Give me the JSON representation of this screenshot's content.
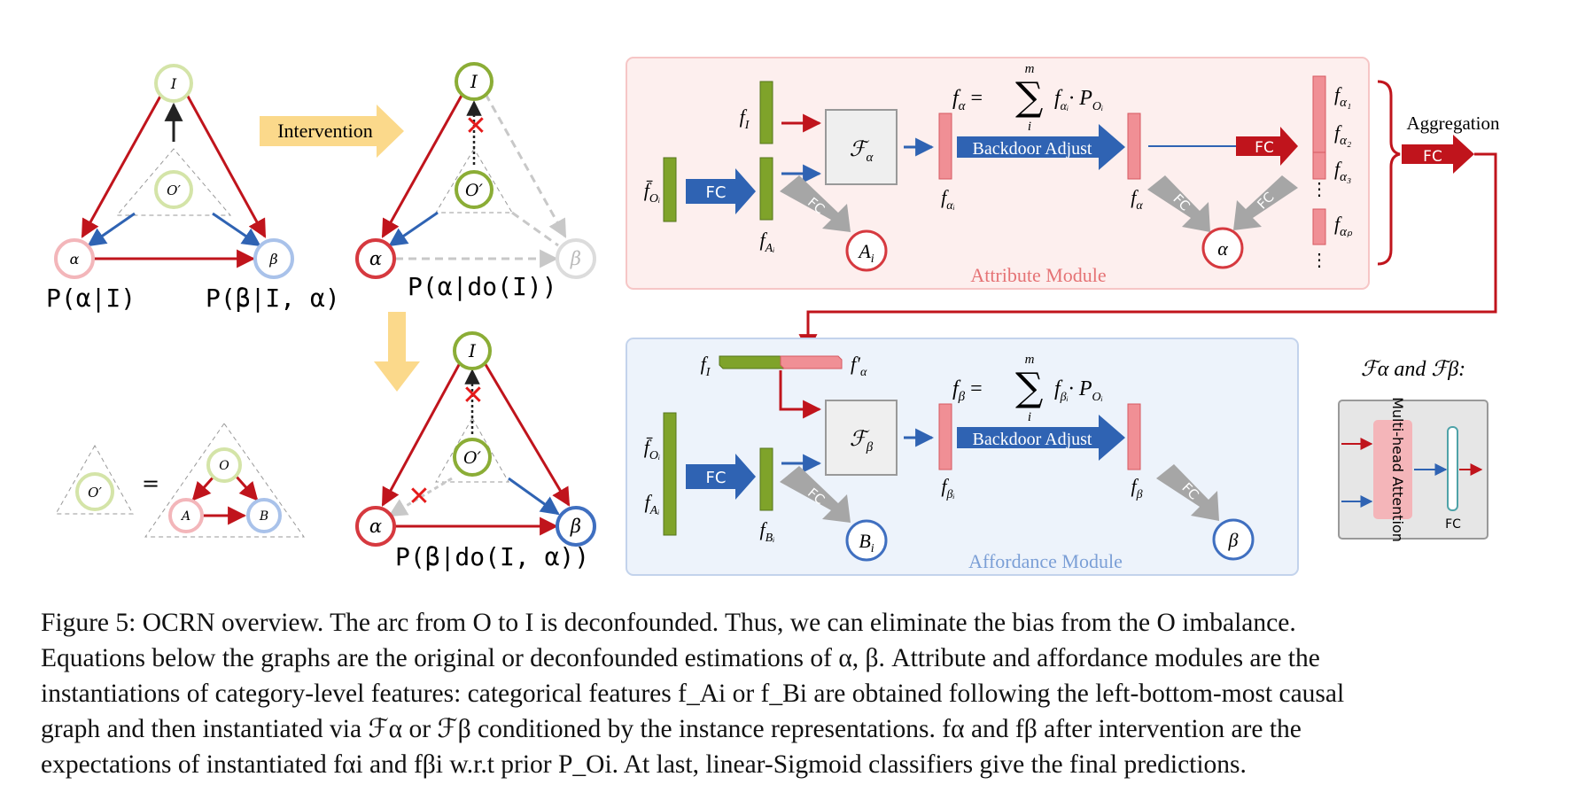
{
  "figure": {
    "intervention_label": "Intervention",
    "graph1": {
      "nodes": {
        "top": "I",
        "center": "O′",
        "left": "α",
        "right": "β"
      },
      "eq_left": "P(α|I)",
      "eq_right": "P(β|I, α)"
    },
    "graph2": {
      "nodes": {
        "top": "I",
        "center": "O′",
        "left": "α",
        "right": "β"
      },
      "eq": "P(α|do(I))"
    },
    "graph3": {
      "nodes": {
        "top": "I",
        "center": "O′",
        "left": "α",
        "right": "β"
      },
      "eq": "P(β|do(I, α))"
    },
    "legend_graph": {
      "left_node": "O′",
      "equals": "=",
      "top": "O",
      "left": "A",
      "right": "B"
    },
    "attribute_module": {
      "title": "Attribute Module",
      "f_I": "f",
      "f_I_sub": "I",
      "f_O": "f̄",
      "f_O_sub": "Oᵢ",
      "fc": "FC",
      "f_A": "f",
      "f_A_sub": "Aᵢ",
      "F_alpha": "ℱ",
      "F_alpha_sub": "α",
      "fc_diag": "FC",
      "A_node": "A",
      "A_node_sub": "i",
      "sum_top": "m",
      "sum_bottom": "i",
      "eq_lhs": "f",
      "eq_lhs_sub": "α",
      "eq_rhs": "· P",
      "f_alpha_i": "f",
      "f_alpha_i_sub": "αᵢ",
      "backdoor": "Backdoor Adjust",
      "f_alpha": "f",
      "f_alpha_sub": "α",
      "fc_red": "FC",
      "alpha_node": "α",
      "stack_labels": [
        "α₁",
        "α₂",
        "α₃",
        "αₚ"
      ],
      "aggregation": "Aggregation",
      "agg_fc": "FC"
    },
    "affordance_module": {
      "title": "Affordance Module",
      "f_I": "f",
      "f_I_sub": "I",
      "f_alpha_prime": "f′",
      "f_alpha_prime_sub": "α",
      "f_O": "f̄",
      "f_O_sub": "Oᵢ",
      "f_A": "f",
      "f_A_sub": "Aᵢ",
      "fc": "FC",
      "f_B": "f",
      "f_B_sub": "Bᵢ",
      "F_beta": "ℱ",
      "F_beta_sub": "β",
      "fc_diag": "FC",
      "B_node": "B",
      "B_node_sub": "i",
      "eq_lhs": "f",
      "eq_lhs_sub": "β",
      "eq_rhs": "· P",
      "sum_top": "m",
      "sum_bottom": "i",
      "f_beta_i": "f",
      "f_beta_i_sub": "βᵢ",
      "backdoor": "Backdoor Adjust",
      "f_beta": "f",
      "f_beta_sub": "β",
      "beta_node": "β"
    },
    "inset": {
      "title": "ℱα and ℱβ:",
      "attention": "Multi-head Attention",
      "fc": "FC"
    }
  },
  "caption": {
    "lines": [
      "Figure 5: OCRN overview. The arc from O to I is deconfounded. Thus, we can eliminate the bias from the O imbalance.",
      "Equations below the graphs are the original or deconfounded estimations of α, β. Attribute and affordance modules are the",
      "instantiations of category-level features: categorical features f_Ai or f_Bi are obtained following the left-bottom-most causal",
      "graph and then instantiated via ℱα or ℱβ conditioned by the instance representations. fα and fβ after intervention are the",
      "expectations of instantiated fαi and fβi w.r.t prior P_Oi. At last, linear-Sigmoid classifiers give the final predictions."
    ]
  },
  "colors": {
    "red": "#c0141c",
    "blue": "#2f63b3",
    "green": "#7fa32a",
    "pink": "#f08f95",
    "gray": "#a6a6a6"
  }
}
